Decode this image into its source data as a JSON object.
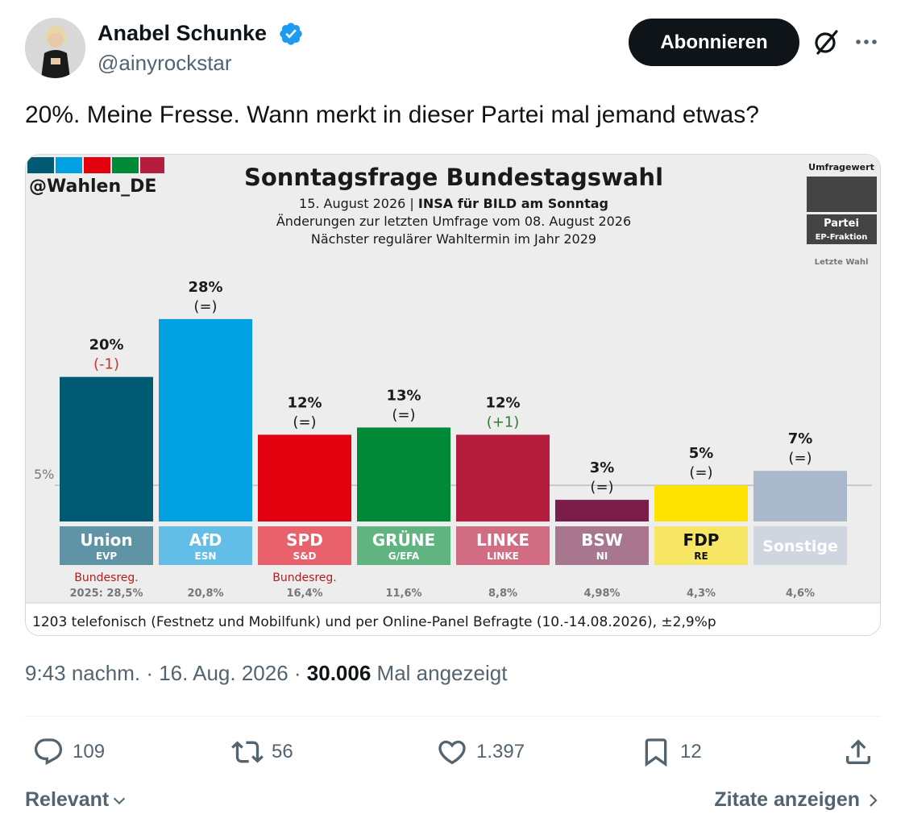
{
  "author": {
    "name": "Anabel Schunke",
    "handle": "@ainyrockstar"
  },
  "header": {
    "subscribe_label": "Abonnieren",
    "icons": [
      "verified-badge-icon",
      "grok-icon",
      "more-icon"
    ]
  },
  "tweet": {
    "text": "20%. Meine Fresse. Wann merkt in dieser Partei mal jemand etwas?",
    "time": "9:43 nachm. · 16. Aug. 2026 · ",
    "views": "30.006",
    "views_suffix": " Mal angezeigt"
  },
  "actions": {
    "replies": "109",
    "retweets": "56",
    "likes": "1.397",
    "bookmarks": "12"
  },
  "footer": {
    "sort_label": "Relevant",
    "quotes_label": "Zitate anzeigen"
  },
  "colors": {
    "accent_blue": "#1d9bf0",
    "text_primary": "#0f1419",
    "text_secondary": "#536471"
  },
  "chart_data": {
    "type": "bar",
    "source_tag": "@Wahlen_DE",
    "title": "Sonntagsfrage Bundestagswahl",
    "subtitle_date": "15. August 2026 | ",
    "subtitle_source": "INSA für BILD am Sonntag",
    "subtitle_line2": "Änderungen zur letzten Umfrage vom 08. August 2026",
    "subtitle_line3": "Nächster regulärer Wahltermin im Jahr 2029",
    "legend": {
      "value_label": "Umfragewert",
      "party_label": "Partei",
      "fraction_label": "EP-Fraktion",
      "last_label": "Letzte Wahl"
    },
    "threshold_label": "5%",
    "threshold_value": 5,
    "ylim": [
      0,
      32
    ],
    "footnote": "1203 telefonisch (Festnetz und Mobilfunk) und per Online-Panel Befragte (10.-14.08.2026), ±2,9%p",
    "parties": [
      {
        "name": "Union",
        "ep": "EVP",
        "value": 20,
        "value_label": "20%",
        "change": "(-1)",
        "change_color": "#c0392b",
        "note": "Bundesreg.",
        "last": "2025: 28,5%",
        "color": "#015a73",
        "label_bg": "#5e94a6"
      },
      {
        "name": "AfD",
        "ep": "ESN",
        "value": 28,
        "value_label": "28%",
        "change": "(=)",
        "change_color": "#1a1a1a",
        "note": "",
        "last": "20,8%",
        "color": "#00a0e1",
        "label_bg": "#62bde7"
      },
      {
        "name": "SPD",
        "ep": "S&D",
        "value": 12,
        "value_label": "12%",
        "change": "(=)",
        "change_color": "#1a1a1a",
        "note": "Bundesreg.",
        "last": "16,4%",
        "color": "#e3000f",
        "label_bg": "#e9626b"
      },
      {
        "name": "GRÜNE",
        "ep": "G/EFA",
        "value": 13,
        "value_label": "13%",
        "change": "(=)",
        "change_color": "#1a1a1a",
        "note": "",
        "last": "11,6%",
        "color": "#008937",
        "label_bg": "#5fb47f"
      },
      {
        "name": "LINKE",
        "ep": "LINKE",
        "value": 12,
        "value_label": "12%",
        "change": "(+1)",
        "change_color": "#2e7d32",
        "note": "",
        "last": "8,8%",
        "color": "#b61c3e",
        "label_bg": "#d16c82"
      },
      {
        "name": "BSW",
        "ep": "NI",
        "value": 3,
        "value_label": "3%",
        "change": "(=)",
        "change_color": "#1a1a1a",
        "note": "",
        "last": "4,98%",
        "color": "#7a1d49",
        "label_bg": "#a97690"
      },
      {
        "name": "FDP",
        "ep": "RE",
        "value": 5,
        "value_label": "5%",
        "change": "(=)",
        "change_color": "#1a1a1a",
        "note": "",
        "last": "4,3%",
        "color": "#ffe300",
        "label_bg": "#f6e663",
        "label_text_color": "#111111"
      },
      {
        "name": "Sonstige",
        "ep": "",
        "value": 7,
        "value_label": "7%",
        "change": "(=)",
        "change_color": "#1a1a1a",
        "note": "",
        "last": "4,6%",
        "color": "#aab8cc",
        "label_bg": "#cfd6e0"
      }
    ]
  }
}
